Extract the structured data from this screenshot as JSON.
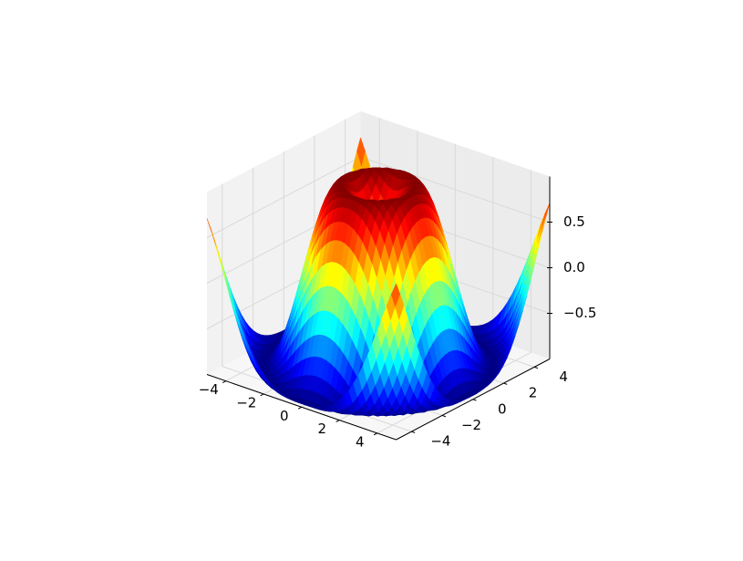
{
  "chart_data": {
    "type": "surface3d",
    "title": "",
    "xlabel": "",
    "ylabel": "",
    "zlabel": "",
    "function": "z = sin(sqrt(x^2 + y^2))",
    "colormap": "jet",
    "grid": true,
    "xlim": [
      -5,
      5
    ],
    "ylim": [
      -5,
      5
    ],
    "zlim": [
      -1,
      1
    ],
    "x_ticks": [
      -4,
      -2,
      0,
      2,
      4
    ],
    "x_tick_labels": [
      "−4",
      "−2",
      "0",
      "2",
      "4"
    ],
    "y_ticks": [
      -4,
      -2,
      0,
      2,
      4
    ],
    "y_tick_labels": [
      "−4",
      "−2",
      "0",
      "2",
      "4"
    ],
    "z_ticks": [
      -0.5,
      0.0,
      0.5
    ],
    "z_tick_labels": [
      "−0.5",
      "0.0",
      "0.5"
    ],
    "grid_step": 0.25
  }
}
